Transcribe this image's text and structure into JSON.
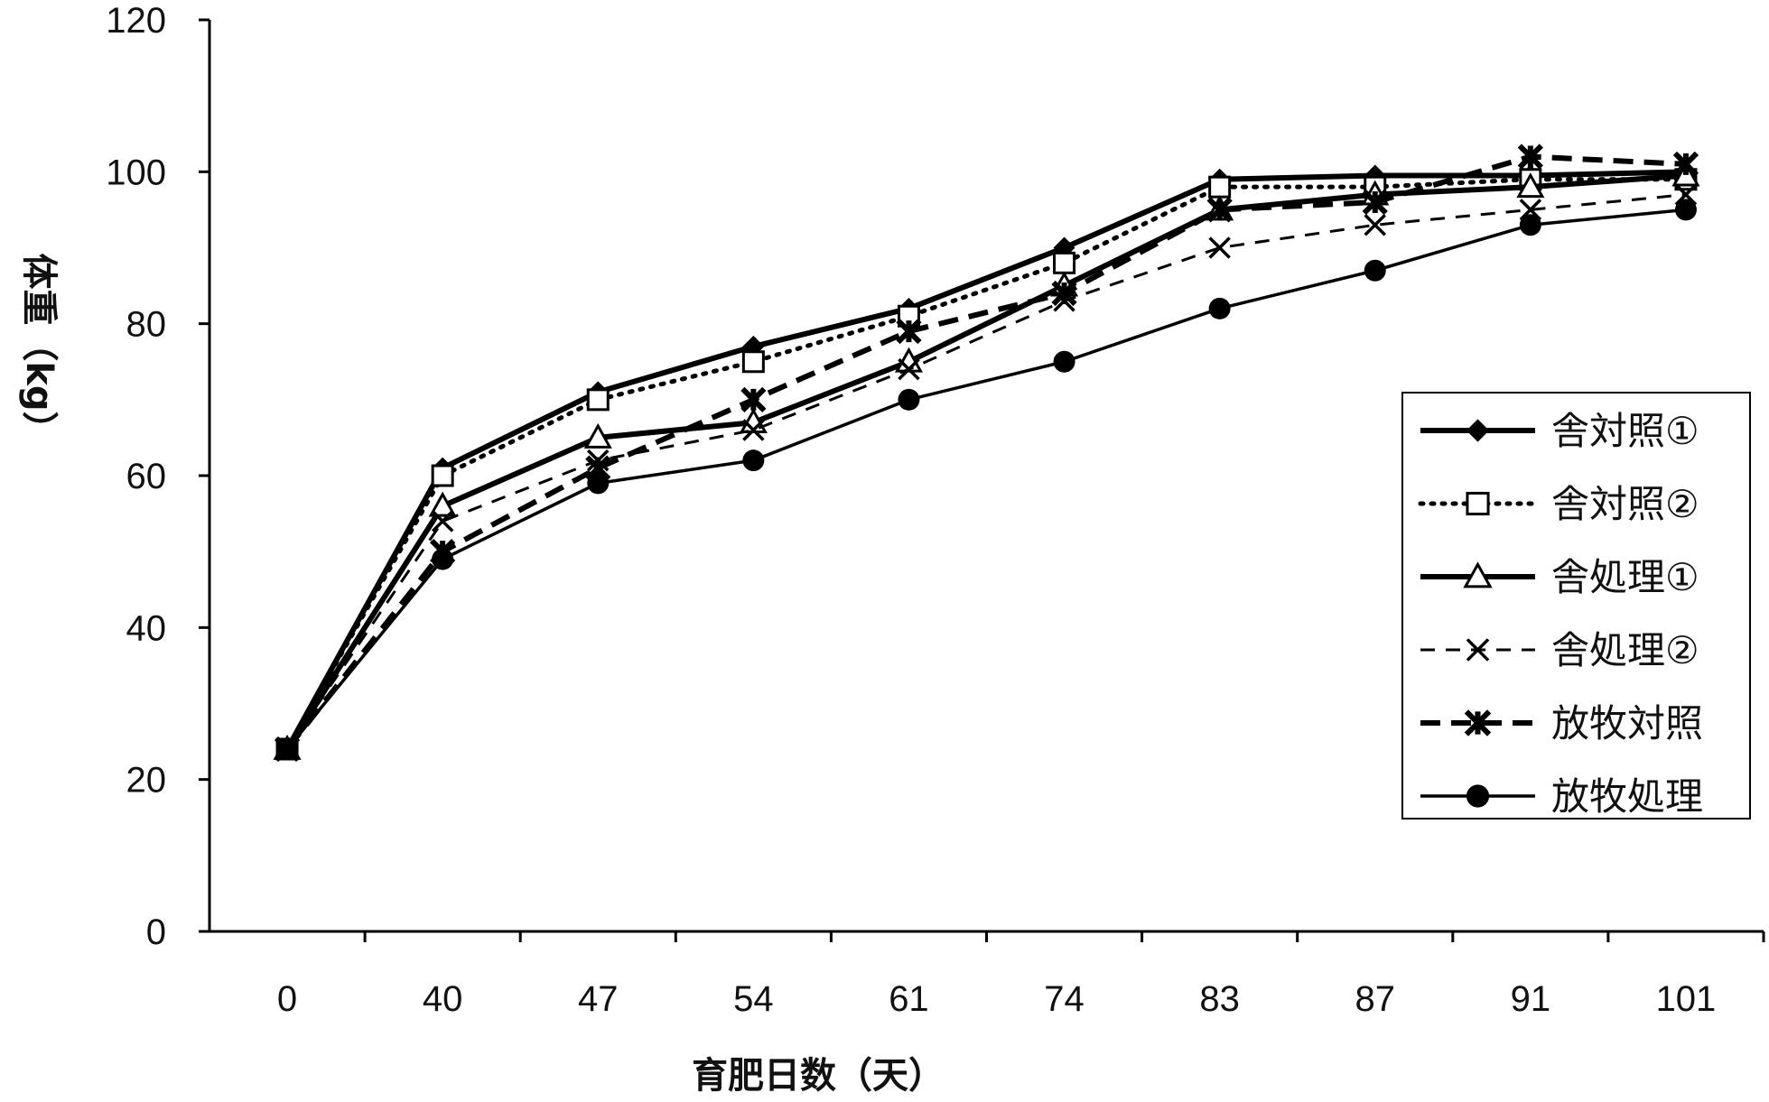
{
  "chart_data": {
    "type": "line",
    "title": "",
    "xlabel": "育肥日数（天）",
    "ylabel": "体重（kg）",
    "categories": [
      "0",
      "40",
      "47",
      "54",
      "61",
      "74",
      "83",
      "87",
      "91",
      "101"
    ],
    "ylim": [
      0,
      120
    ],
    "yticks": [
      0,
      20,
      40,
      60,
      80,
      100,
      120
    ],
    "grid": false,
    "legend_position": "right",
    "series": [
      {
        "name": "舎対照①",
        "marker": "diamond-filled",
        "line": "solid-thick",
        "values": [
          24,
          61,
          71,
          77,
          82,
          90,
          99,
          99.5,
          99.5,
          100
        ]
      },
      {
        "name": "舎対照②",
        "marker": "square-open",
        "line": "dotted",
        "values": [
          24,
          60,
          70,
          75,
          81,
          88,
          98,
          98,
          99,
          99
        ]
      },
      {
        "name": "舎処理①",
        "marker": "triangle-open",
        "line": "solid-thick",
        "values": [
          24,
          56,
          65,
          67,
          75,
          85,
          95,
          97,
          98,
          99.5
        ]
      },
      {
        "name": "舎処理②",
        "marker": "x",
        "line": "dashed-thin",
        "values": [
          24,
          54,
          62,
          66,
          74,
          83,
          90,
          93,
          95,
          97
        ]
      },
      {
        "name": "放牧対照",
        "marker": "asterisk-bold",
        "line": "dashed-thick",
        "values": [
          24,
          50,
          61,
          70,
          79,
          84,
          95,
          96,
          102,
          101
        ]
      },
      {
        "name": "放牧処理",
        "marker": "circle-filled",
        "line": "solid-thin",
        "values": [
          24,
          49,
          59,
          62,
          70,
          75,
          82,
          87,
          93,
          95
        ]
      }
    ]
  }
}
